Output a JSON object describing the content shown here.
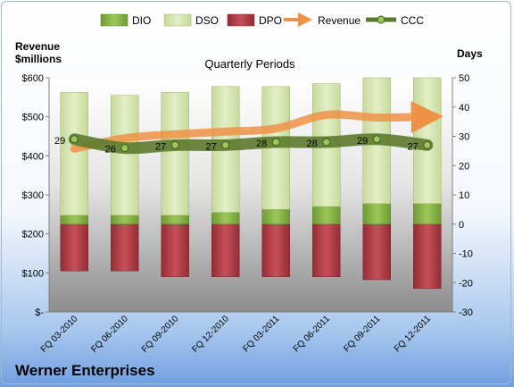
{
  "company": "Werner Enterprises",
  "chart_data": {
    "type": "bar",
    "title": "Quarterly Periods",
    "left_axis": {
      "label_line1": "Revenue",
      "label_line2": "$millions",
      "ylim": [
        0,
        600
      ],
      "ticks": [
        "$-",
        "$100",
        "$200",
        "$300",
        "$400",
        "$500",
        "$600"
      ]
    },
    "right_axis": {
      "label": "Days",
      "ylim": [
        -30,
        50
      ],
      "ticks": [
        "-30",
        "-20",
        "-10",
        "0",
        "10",
        "20",
        "30",
        "40",
        "50"
      ]
    },
    "categories": [
      "FQ 03-2010",
      "FQ 06-2010",
      "FQ 09-2010",
      "FQ 12-2010",
      "FQ 03-2011",
      "FQ 06-2011",
      "FQ 09-2011",
      "FQ 12-2011"
    ],
    "series": [
      {
        "name": "DIO",
        "axis": "right",
        "color": "#8db94a",
        "values": [
          3,
          3,
          3,
          4,
          5,
          6,
          7,
          7
        ]
      },
      {
        "name": "DSO",
        "axis": "right",
        "color": "#d2e4a8",
        "values": [
          42,
          41,
          42,
          43,
          42,
          42,
          43,
          43
        ]
      },
      {
        "name": "DPO",
        "axis": "right",
        "color": "#b8424c",
        "values": [
          -16,
          -16,
          -18,
          -18,
          -18,
          -18,
          -19,
          -22
        ]
      },
      {
        "name": "Revenue",
        "axis": "left",
        "color": "#ee9245",
        "values": [
          418,
          445,
          455,
          462,
          470,
          505,
          498,
          500
        ]
      },
      {
        "name": "CCC",
        "axis": "right",
        "color": "#5c7a2e",
        "values": [
          29,
          26,
          27,
          27,
          28,
          28,
          29,
          27
        ]
      }
    ],
    "ccc_labels": [
      "29",
      "26",
      "27",
      "27",
      "28",
      "28",
      "29",
      "27"
    ],
    "legend": [
      "DIO",
      "DSO",
      "DPO",
      "Revenue",
      "CCC"
    ],
    "legend_position": "top",
    "grid": false
  }
}
